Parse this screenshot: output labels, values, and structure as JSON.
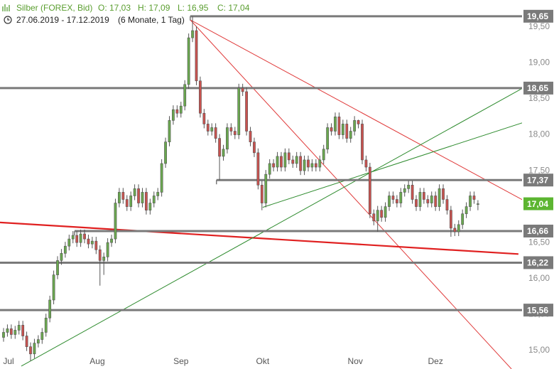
{
  "chart_data": {
    "type": "candlestick",
    "title": "Silber (FOREX, Bid)",
    "quote": [
      "O: 17,03",
      "H: 17,09",
      "L: 16,95",
      "C: 17,04"
    ],
    "subtitle": "27.06.2019 - 17.12.2019",
    "period": "(6 Monate, 1 Tag)",
    "up_color": "#6aa84f",
    "down_color": "#c9524f",
    "ylim": [
      14.74,
      19.876
    ],
    "yticks": [
      {
        "value": 15,
        "label": "15,00"
      },
      {
        "value": 15.5,
        "label": "15,50"
      },
      {
        "value": 16,
        "label": "16,00"
      },
      {
        "value": 16.5,
        "label": "16,50"
      },
      {
        "value": 17,
        "label": "17,00"
      },
      {
        "value": 17.5,
        "label": "17,50"
      },
      {
        "value": 18,
        "label": "18,00"
      },
      {
        "value": 18.5,
        "label": "18,50"
      },
      {
        "value": 19,
        "label": "19,00"
      },
      {
        "value": 19.5,
        "label": "19,50"
      }
    ],
    "xticks": [
      {
        "value": 1.3,
        "label": "Jul"
      },
      {
        "value": 24.3,
        "label": "Aug"
      },
      {
        "value": 46,
        "label": "Sep"
      },
      {
        "value": 67.2,
        "label": "Okt"
      },
      {
        "value": 91.2,
        "label": "Nov"
      },
      {
        "value": 112,
        "label": "Dez"
      }
    ],
    "levels": [
      {
        "value": 19.65,
        "label": "19,65",
        "start": 48.4,
        "color": "#7a7a7a"
      },
      {
        "value": 18.65,
        "label": "18,65",
        "start": -1,
        "color": "#7a7a7a"
      },
      {
        "value": 17.37,
        "label": "17,37",
        "start": 55.2,
        "color": "#7a7a7a"
      },
      {
        "value": 16.66,
        "label": "16,66",
        "start": 18.4,
        "color": "#7a7a7a"
      },
      {
        "value": 16.22,
        "label": "16,22",
        "start": -1,
        "color": "#7a7a7a"
      },
      {
        "value": 15.56,
        "label": "15,56",
        "start": -1,
        "color": "#7a7a7a"
      }
    ],
    "last_price": {
      "value": 17.04,
      "label": "17,04",
      "color": "#5cb531"
    },
    "trendlines": [
      {
        "color": "#e03a3a",
        "width": 1,
        "points": [
          [
            48.4,
            19.6
          ],
          [
            140.9,
            16.91
          ]
        ]
      },
      {
        "color": "#e03a3a",
        "width": 1,
        "points": [
          [
            48.4,
            19.6
          ],
          [
            131.7,
            14.74
          ]
        ]
      },
      {
        "color": "#e02020",
        "width": 2.2,
        "points": [
          [
            -0.92,
            16.78
          ],
          [
            133.5,
            16.34
          ]
        ]
      },
      {
        "color": "#2e8b2e",
        "width": 1,
        "points": [
          [
            4.6,
            14.78
          ],
          [
            142.7,
            18.89
          ]
        ]
      },
      {
        "color": "#2e8b2e",
        "width": 1,
        "points": [
          [
            67.2,
            16.99
          ],
          [
            142.7,
            18.31
          ]
        ]
      }
    ],
    "candles": [
      [
        15.18,
        15.31,
        15.12,
        15.25
      ],
      [
        15.25,
        15.36,
        15.19,
        15.3
      ],
      [
        15.3,
        15.36,
        15.16,
        15.22
      ],
      [
        15.22,
        15.34,
        15.16,
        15.28
      ],
      [
        15.28,
        15.41,
        15.22,
        15.35
      ],
      [
        15.35,
        15.41,
        15.14,
        15.2
      ],
      [
        15.2,
        15.26,
        14.99,
        15.05
      ],
      [
        15.05,
        15.11,
        14.85,
        14.95
      ],
      [
        14.95,
        15.16,
        14.89,
        15.1
      ],
      [
        15.1,
        15.21,
        15.04,
        15.15
      ],
      [
        15.15,
        15.31,
        15.09,
        15.25
      ],
      [
        15.25,
        15.51,
        15.19,
        15.45
      ],
      [
        15.45,
        15.76,
        15.39,
        15.7
      ],
      [
        15.7,
        16.11,
        15.64,
        16.05
      ],
      [
        16.05,
        16.31,
        15.99,
        16.25
      ],
      [
        16.25,
        16.41,
        16.19,
        16.35
      ],
      [
        16.35,
        16.51,
        16.29,
        16.45
      ],
      [
        16.45,
        16.61,
        16.39,
        16.55
      ],
      [
        16.55,
        16.66,
        16.49,
        16.6
      ],
      [
        16.6,
        16.66,
        16.44,
        16.5
      ],
      [
        16.5,
        16.68,
        16.44,
        16.62
      ],
      [
        16.62,
        16.68,
        16.49,
        16.55
      ],
      [
        16.55,
        16.61,
        16.42,
        16.48
      ],
      [
        16.48,
        16.58,
        16.42,
        16.52
      ],
      [
        16.52,
        16.58,
        16.34,
        16.4
      ],
      [
        16.4,
        16.46,
        15.9,
        16.25
      ],
      [
        16.25,
        16.36,
        16.05,
        16.3
      ],
      [
        16.3,
        16.56,
        16.24,
        16.5
      ],
      [
        16.5,
        16.61,
        16.44,
        16.55
      ],
      [
        16.55,
        17.11,
        16.49,
        17.05
      ],
      [
        17.05,
        17.26,
        16.99,
        17.2
      ],
      [
        17.2,
        17.26,
        17.04,
        17.1
      ],
      [
        17.1,
        17.16,
        16.94,
        17.0
      ],
      [
        17.0,
        17.21,
        16.94,
        17.15
      ],
      [
        17.15,
        17.31,
        17.09,
        17.25
      ],
      [
        17.25,
        17.31,
        16.99,
        17.05
      ],
      [
        17.05,
        17.26,
        16.99,
        17.2
      ],
      [
        17.2,
        17.26,
        16.89,
        16.95
      ],
      [
        16.95,
        17.11,
        16.89,
        17.05
      ],
      [
        17.05,
        17.21,
        16.99,
        17.15
      ],
      [
        17.15,
        17.26,
        17.09,
        17.2
      ],
      [
        17.2,
        17.66,
        17.14,
        17.6
      ],
      [
        17.6,
        17.96,
        17.54,
        17.9
      ],
      [
        17.9,
        18.26,
        17.84,
        18.2
      ],
      [
        18.2,
        18.41,
        18.14,
        18.35
      ],
      [
        18.35,
        18.41,
        18.24,
        18.3
      ],
      [
        18.3,
        18.46,
        18.24,
        18.4
      ],
      [
        18.4,
        18.76,
        18.34,
        18.7
      ],
      [
        18.7,
        19.41,
        18.64,
        19.35
      ],
      [
        19.35,
        19.65,
        19.29,
        19.45
      ],
      [
        19.45,
        19.51,
        18.69,
        18.75
      ],
      [
        18.75,
        18.81,
        18.24,
        18.3
      ],
      [
        18.3,
        18.36,
        18.09,
        18.15
      ],
      [
        18.15,
        18.21,
        17.99,
        18.05
      ],
      [
        18.05,
        18.16,
        17.99,
        18.1
      ],
      [
        18.1,
        18.16,
        17.89,
        17.95
      ],
      [
        17.95,
        18.01,
        17.37,
        17.7
      ],
      [
        17.7,
        17.86,
        17.64,
        17.8
      ],
      [
        17.8,
        18.16,
        17.74,
        18.1
      ],
      [
        18.1,
        18.16,
        17.99,
        18.05
      ],
      [
        18.05,
        18.11,
        17.94,
        18.0
      ],
      [
        18.0,
        18.71,
        17.94,
        18.65
      ],
      [
        18.65,
        18.71,
        18.54,
        18.6
      ],
      [
        18.6,
        18.66,
        17.99,
        18.05
      ],
      [
        18.05,
        18.11,
        17.84,
        17.9
      ],
      [
        17.9,
        17.96,
        17.69,
        17.75
      ],
      [
        17.75,
        17.81,
        17.24,
        17.3
      ],
      [
        17.3,
        17.36,
        16.95,
        17.05
      ],
      [
        17.05,
        17.51,
        16.99,
        17.45
      ],
      [
        17.45,
        17.66,
        17.39,
        17.6
      ],
      [
        17.6,
        17.66,
        17.49,
        17.55
      ],
      [
        17.55,
        17.76,
        17.49,
        17.7
      ],
      [
        17.7,
        17.76,
        17.49,
        17.55
      ],
      [
        17.55,
        17.81,
        17.49,
        17.75
      ],
      [
        17.75,
        17.81,
        17.59,
        17.65
      ],
      [
        17.65,
        17.71,
        17.54,
        17.6
      ],
      [
        17.6,
        17.76,
        17.54,
        17.7
      ],
      [
        17.7,
        17.76,
        17.44,
        17.5
      ],
      [
        17.5,
        17.71,
        17.44,
        17.65
      ],
      [
        17.65,
        17.71,
        17.49,
        17.55
      ],
      [
        17.55,
        17.66,
        17.49,
        17.6
      ],
      [
        17.6,
        17.66,
        17.49,
        17.55
      ],
      [
        17.55,
        17.71,
        17.49,
        17.65
      ],
      [
        17.65,
        17.86,
        17.59,
        17.8
      ],
      [
        17.8,
        18.16,
        17.74,
        18.1
      ],
      [
        18.1,
        18.16,
        17.99,
        18.05
      ],
      [
        18.05,
        18.31,
        17.99,
        18.25
      ],
      [
        18.25,
        18.31,
        17.94,
        18.0
      ],
      [
        18.0,
        18.21,
        17.94,
        18.15
      ],
      [
        18.15,
        18.21,
        17.89,
        17.95
      ],
      [
        17.95,
        18.11,
        17.89,
        18.05
      ],
      [
        18.05,
        18.26,
        17.99,
        18.2
      ],
      [
        18.2,
        18.21,
        18.09,
        18.15
      ],
      [
        18.15,
        18.21,
        17.59,
        17.65
      ],
      [
        17.65,
        17.71,
        17.49,
        17.55
      ],
      [
        17.55,
        17.61,
        16.84,
        16.9
      ],
      [
        16.9,
        16.96,
        16.74,
        16.8
      ],
      [
        16.8,
        17.01,
        16.65,
        16.95
      ],
      [
        16.95,
        17.01,
        16.79,
        16.85
      ],
      [
        16.85,
        17.06,
        16.79,
        17.0
      ],
      [
        17.0,
        17.21,
        16.94,
        17.15
      ],
      [
        17.15,
        17.21,
        17.04,
        17.1
      ],
      [
        17.1,
        17.16,
        16.99,
        17.05
      ],
      [
        17.05,
        17.26,
        16.99,
        17.2
      ],
      [
        17.2,
        17.31,
        17.14,
        17.25
      ],
      [
        17.25,
        17.36,
        17.19,
        17.3
      ],
      [
        17.3,
        17.36,
        17.04,
        17.1
      ],
      [
        17.1,
        17.16,
        16.94,
        17.0
      ],
      [
        17.0,
        17.26,
        16.94,
        17.2
      ],
      [
        17.2,
        17.26,
        17.04,
        17.1
      ],
      [
        17.1,
        17.16,
        16.99,
        17.05
      ],
      [
        17.05,
        17.21,
        16.99,
        17.15
      ],
      [
        17.15,
        17.21,
        16.94,
        17.0
      ],
      [
        17.0,
        17.31,
        16.94,
        17.25
      ],
      [
        17.25,
        17.31,
        17.04,
        17.1
      ],
      [
        17.1,
        17.16,
        16.89,
        16.95
      ],
      [
        16.95,
        17.01,
        16.58,
        16.7
      ],
      [
        16.7,
        16.76,
        16.59,
        16.65
      ],
      [
        16.65,
        16.81,
        16.59,
        16.75
      ],
      [
        16.75,
        16.96,
        16.69,
        16.9
      ],
      [
        16.9,
        17.06,
        16.84,
        17.0
      ],
      [
        17.0,
        17.21,
        16.94,
        17.15
      ],
      [
        17.15,
        17.21,
        17.04,
        17.1
      ],
      [
        17.03,
        17.09,
        16.95,
        17.04
      ]
    ]
  }
}
